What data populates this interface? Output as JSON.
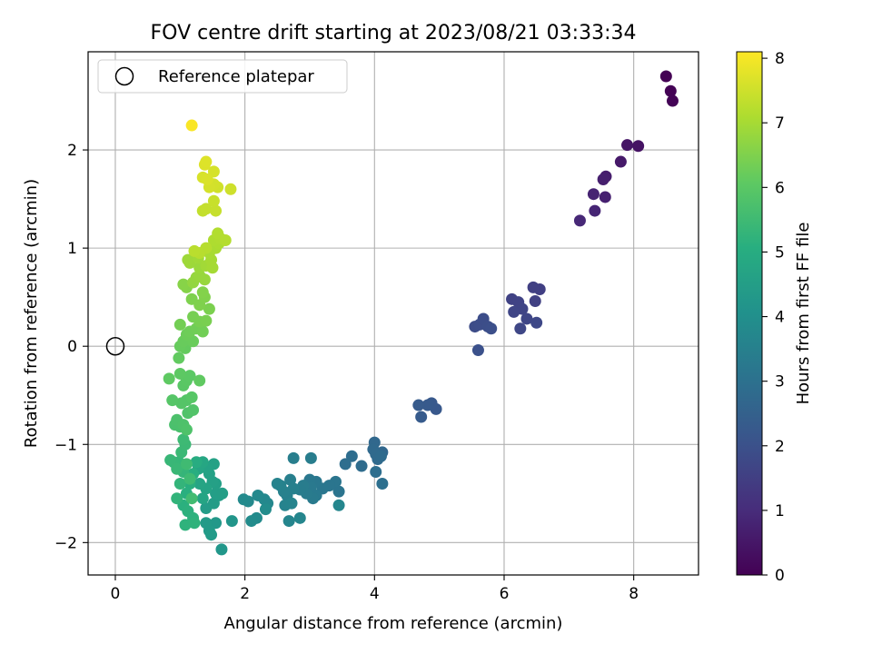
{
  "chart_data": {
    "type": "scatter",
    "title": "FOV centre drift starting at 2023/08/21 03:33:34",
    "xlabel": "Angular distance from reference (arcmin)",
    "ylabel": "Rotation from reference (arcmin)",
    "xlim": [
      -0.42,
      9.0
    ],
    "ylim": [
      -2.33,
      3.0
    ],
    "xticks": [
      "0",
      "2",
      "4",
      "6",
      "8"
    ],
    "yticks": [
      "−2",
      "−1",
      "0",
      "1",
      "2"
    ],
    "grid": true,
    "legend": {
      "position": "top-left",
      "entries": [
        "Reference platepar"
      ]
    },
    "reference_point": {
      "x": 0,
      "y": 0
    },
    "colorbar": {
      "label": "Hours from first FF file",
      "range": [
        0,
        8.1
      ],
      "ticks": [
        "0",
        "1",
        "2",
        "3",
        "4",
        "5",
        "6",
        "7",
        "8"
      ],
      "colormap": "viridis"
    },
    "points": [
      [
        8.5,
        2.75,
        0.0
      ],
      [
        8.57,
        2.6,
        0.03
      ],
      [
        8.6,
        2.5,
        0.05
      ],
      [
        8.07,
        2.04,
        0.4
      ],
      [
        7.9,
        2.05,
        0.45
      ],
      [
        7.8,
        1.88,
        0.55
      ],
      [
        7.57,
        1.73,
        0.65
      ],
      [
        7.53,
        1.7,
        0.68
      ],
      [
        7.56,
        1.52,
        0.72
      ],
      [
        7.38,
        1.55,
        0.78
      ],
      [
        7.4,
        1.38,
        0.83
      ],
      [
        7.17,
        1.28,
        0.9
      ],
      [
        6.55,
        0.58,
        1.5
      ],
      [
        6.45,
        0.6,
        1.52
      ],
      [
        6.48,
        0.46,
        1.55
      ],
      [
        6.12,
        0.48,
        1.6
      ],
      [
        6.22,
        0.45,
        1.62
      ],
      [
        6.28,
        0.38,
        1.65
      ],
      [
        6.15,
        0.35,
        1.68
      ],
      [
        6.35,
        0.28,
        1.7
      ],
      [
        6.25,
        0.18,
        1.72
      ],
      [
        6.5,
        0.24,
        1.75
      ],
      [
        5.55,
        0.2,
        1.85
      ],
      [
        5.62,
        0.22,
        1.88
      ],
      [
        5.68,
        0.28,
        1.9
      ],
      [
        5.75,
        0.2,
        1.92
      ],
      [
        5.8,
        0.18,
        1.95
      ],
      [
        5.6,
        -0.04,
        2.0
      ],
      [
        4.95,
        -0.64,
        2.2
      ],
      [
        4.88,
        -0.58,
        2.25
      ],
      [
        4.82,
        -0.6,
        2.28
      ],
      [
        4.68,
        -0.6,
        2.3
      ],
      [
        4.72,
        -0.72,
        2.32
      ],
      [
        4.12,
        -1.08,
        2.7
      ],
      [
        4.0,
        -0.98,
        2.72
      ],
      [
        3.98,
        -1.05,
        2.75
      ],
      [
        4.02,
        -1.1,
        2.78
      ],
      [
        4.05,
        -1.15,
        2.8
      ],
      [
        4.1,
        -1.12,
        2.82
      ],
      [
        3.8,
        -1.22,
        2.85
      ],
      [
        3.65,
        -1.12,
        2.88
      ],
      [
        3.55,
        -1.2,
        2.9
      ],
      [
        4.02,
        -1.28,
        2.92
      ],
      [
        4.12,
        -1.4,
        2.94
      ],
      [
        3.45,
        -1.48,
        3.1
      ],
      [
        3.4,
        -1.38,
        3.12
      ],
      [
        3.3,
        -1.42,
        3.15
      ],
      [
        3.2,
        -1.45,
        3.18
      ],
      [
        3.1,
        -1.38,
        3.2
      ],
      [
        3.0,
        -1.36,
        3.22
      ],
      [
        3.02,
        -1.44,
        3.25
      ],
      [
        3.1,
        -1.52,
        3.28
      ],
      [
        3.05,
        -1.55,
        3.3
      ],
      [
        2.95,
        -1.5,
        3.32
      ],
      [
        2.9,
        -1.42,
        3.35
      ],
      [
        2.85,
        -1.46,
        3.38
      ],
      [
        3.02,
        -1.14,
        3.4
      ],
      [
        2.75,
        -1.14,
        3.42
      ],
      [
        2.7,
        -1.36,
        3.45
      ],
      [
        2.75,
        -1.45,
        3.48
      ],
      [
        2.65,
        -1.52,
        3.5
      ],
      [
        2.6,
        -1.48,
        3.52
      ],
      [
        2.55,
        -1.42,
        3.55
      ],
      [
        2.5,
        -1.4,
        3.58
      ],
      [
        2.62,
        -1.62,
        3.6
      ],
      [
        2.72,
        -1.6,
        3.62
      ],
      [
        2.68,
        -1.78,
        3.65
      ],
      [
        2.85,
        -1.75,
        3.68
      ],
      [
        3.45,
        -1.62,
        3.7
      ],
      [
        2.35,
        -1.6,
        3.72
      ],
      [
        2.3,
        -1.56,
        3.75
      ],
      [
        2.2,
        -1.52,
        3.78
      ],
      [
        2.05,
        -1.58,
        3.8
      ],
      [
        1.98,
        -1.56,
        3.82
      ],
      [
        2.18,
        -1.75,
        3.85
      ],
      [
        2.1,
        -1.78,
        3.88
      ],
      [
        2.32,
        -1.66,
        3.9
      ],
      [
        1.8,
        -1.78,
        4.2
      ],
      [
        1.64,
        -2.07,
        4.25
      ],
      [
        1.55,
        -1.8,
        4.3
      ],
      [
        1.45,
        -1.88,
        4.35
      ],
      [
        1.4,
        -1.8,
        4.38
      ],
      [
        1.48,
        -1.92,
        4.4
      ],
      [
        1.4,
        -1.65,
        4.42
      ],
      [
        1.52,
        -1.6,
        4.45
      ],
      [
        1.6,
        -1.52,
        4.48
      ],
      [
        1.55,
        -1.5,
        4.5
      ],
      [
        1.65,
        -1.5,
        4.52
      ],
      [
        1.55,
        -1.4,
        4.55
      ],
      [
        1.5,
        -1.38,
        4.58
      ],
      [
        1.52,
        -1.2,
        4.6
      ],
      [
        1.45,
        -1.3,
        4.62
      ],
      [
        1.42,
        -1.25,
        4.65
      ],
      [
        1.4,
        -1.45,
        4.68
      ],
      [
        1.35,
        -1.55,
        4.7
      ],
      [
        1.3,
        -1.4,
        4.72
      ],
      [
        1.28,
        -1.25,
        4.75
      ],
      [
        1.35,
        -1.18,
        4.78
      ],
      [
        1.25,
        -1.18,
        5.0
      ],
      [
        1.2,
        -1.3,
        5.05
      ],
      [
        1.15,
        -1.4,
        5.08
      ],
      [
        1.1,
        -1.5,
        5.1
      ],
      [
        1.05,
        -1.62,
        5.12
      ],
      [
        1.12,
        -1.68,
        5.15
      ],
      [
        1.2,
        -1.75,
        5.18
      ],
      [
        1.08,
        -1.82,
        5.2
      ],
      [
        1.22,
        -1.8,
        5.22
      ],
      [
        0.95,
        -1.55,
        5.25
      ],
      [
        1.0,
        -1.4,
        5.28
      ],
      [
        1.05,
        -1.28,
        5.3
      ],
      [
        0.98,
        -1.18,
        5.32
      ],
      [
        0.9,
        -1.18,
        5.35
      ],
      [
        0.85,
        -1.16,
        5.38
      ],
      [
        0.95,
        -1.25,
        5.4
      ],
      [
        1.02,
        -1.08,
        5.42
      ],
      [
        1.08,
        -1.0,
        5.45
      ],
      [
        1.05,
        -0.95,
        5.48
      ],
      [
        1.15,
        -1.35,
        5.5
      ],
      [
        1.1,
        -1.2,
        5.52
      ],
      [
        1.18,
        -1.55,
        5.55
      ],
      [
        1.0,
        -0.82,
        5.7
      ],
      [
        0.92,
        -0.8,
        5.72
      ],
      [
        0.95,
        -0.75,
        5.75
      ],
      [
        1.05,
        -0.8,
        5.78
      ],
      [
        1.1,
        -0.85,
        5.8
      ],
      [
        1.12,
        -0.68,
        5.82
      ],
      [
        1.2,
        -0.65,
        5.85
      ],
      [
        1.1,
        -0.55,
        5.88
      ],
      [
        1.02,
        -0.58,
        5.9
      ],
      [
        0.88,
        -0.55,
        5.92
      ],
      [
        1.18,
        -0.52,
        5.95
      ],
      [
        1.05,
        -0.4,
        5.98
      ],
      [
        1.1,
        -0.35,
        6.0
      ],
      [
        1.15,
        -0.3,
        6.02
      ],
      [
        1.0,
        -0.28,
        6.05
      ],
      [
        0.83,
        -0.33,
        6.08
      ],
      [
        1.3,
        -0.35,
        6.1
      ],
      [
        0.98,
        -0.12,
        6.12
      ],
      [
        1.08,
        -0.02,
        6.15
      ],
      [
        1.0,
        0.0,
        6.18
      ],
      [
        1.05,
        0.05,
        6.2
      ],
      [
        1.2,
        0.05,
        6.22
      ],
      [
        1.1,
        0.12,
        6.25
      ],
      [
        1.15,
        0.15,
        6.28
      ],
      [
        1.25,
        0.18,
        6.3
      ],
      [
        1.35,
        0.15,
        6.32
      ],
      [
        1.0,
        0.22,
        6.35
      ],
      [
        1.2,
        0.3,
        6.38
      ],
      [
        1.3,
        0.25,
        6.4
      ],
      [
        1.4,
        0.26,
        6.42
      ],
      [
        1.45,
        0.38,
        6.45
      ],
      [
        1.18,
        0.48,
        6.48
      ],
      [
        1.3,
        0.42,
        6.5
      ],
      [
        1.38,
        0.5,
        6.52
      ],
      [
        1.35,
        0.55,
        6.55
      ],
      [
        1.1,
        0.6,
        6.58
      ],
      [
        1.05,
        0.63,
        6.6
      ],
      [
        1.2,
        0.65,
        6.75
      ],
      [
        1.25,
        0.7,
        6.78
      ],
      [
        1.3,
        0.72,
        6.8
      ],
      [
        1.38,
        0.68,
        6.82
      ],
      [
        1.3,
        0.8,
        6.85
      ],
      [
        1.15,
        0.85,
        6.88
      ],
      [
        1.12,
        0.88,
        6.9
      ],
      [
        1.28,
        0.9,
        6.92
      ],
      [
        1.4,
        0.82,
        6.95
      ],
      [
        1.5,
        0.8,
        6.98
      ],
      [
        1.48,
        0.88,
        7.0
      ],
      [
        1.45,
        0.95,
        7.02
      ],
      [
        1.55,
        1.0,
        7.05
      ],
      [
        1.6,
        1.05,
        7.08
      ],
      [
        1.52,
        1.08,
        7.1
      ],
      [
        1.62,
        1.1,
        7.12
      ],
      [
        1.58,
        1.15,
        7.15
      ],
      [
        1.7,
        1.08,
        7.18
      ],
      [
        1.4,
        1.0,
        7.2
      ],
      [
        1.3,
        0.95,
        7.22
      ],
      [
        1.22,
        0.97,
        7.25
      ],
      [
        1.35,
        1.38,
        7.35
      ],
      [
        1.4,
        1.4,
        7.38
      ],
      [
        1.55,
        1.38,
        7.4
      ],
      [
        1.52,
        1.48,
        7.42
      ],
      [
        1.78,
        1.6,
        7.5
      ],
      [
        1.58,
        1.62,
        7.52
      ],
      [
        1.52,
        1.65,
        7.55
      ],
      [
        1.45,
        1.62,
        7.58
      ],
      [
        1.52,
        1.78,
        7.6
      ],
      [
        1.35,
        1.72,
        7.62
      ],
      [
        1.42,
        1.7,
        7.65
      ],
      [
        1.38,
        1.85,
        7.68
      ],
      [
        1.4,
        1.88,
        7.7
      ],
      [
        1.18,
        2.25,
        8.05
      ]
    ]
  }
}
